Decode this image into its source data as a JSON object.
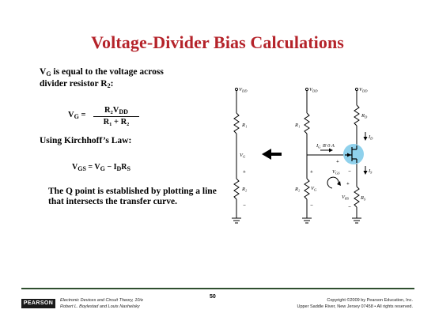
{
  "slide": {
    "title": "Voltage-Divider Bias Calculations",
    "intro_line1": "is equal to the voltage across",
    "intro_line2": "divider resistor R",
    "intro_sub": "2",
    "kirchhoff": "Using Kirchhoff’s Law:",
    "qpoint": "The Q point is established by plotting a line that intersects the transfer curve."
  },
  "equations": {
    "vg_lhs": "V",
    "vg_lhs_sub": "G",
    "vg_eq": " =",
    "vg_num": "R₂V",
    "vg_num_sub": "DD",
    "vg_den": "R₁ + R₂",
    "vgs": "V",
    "vgs_sub": "GS",
    "vgs_rhs": " = V",
    "vgs_rhs_sub": "G",
    "vgs_rhs2": " − I",
    "vgs_rhs2_sub": "D",
    "vgs_rhs3": "R",
    "vgs_rhs3_sub": "S"
  },
  "circuit_labels": {
    "vdd": "V",
    "vdd_sub": "DD",
    "r1": "R₁",
    "r2": "R₂",
    "vg": "V",
    "vg_sub": "G",
    "rd": "R",
    "rd_sub": "D",
    "rs": "R",
    "rs_sub": "S",
    "id": "I",
    "id_sub": "D",
    "is": "I",
    "is_sub": "S",
    "ig": "I",
    "ig_sub": "G",
    "ig_val": " ≅ 0 A",
    "vgs": "V",
    "vgs_sub": "GS",
    "vrs": "V",
    "vrs_sub": "RS",
    "plus": "+",
    "minus": "−"
  },
  "footer": {
    "publisher": "PEARSON",
    "book_line1": "Electronic Devices and Circuit Theory, 10/e",
    "book_line2": "Robert L. Boylestad and Louis Nashelsky",
    "page": "50",
    "copyright_line1": "Copyright ©2009 by Pearson Education, Inc.",
    "copyright_line2": "Upper Saddle River, New Jersey 07458 • All rights reserved."
  },
  "colors": {
    "title": "#b5232a",
    "transistor_highlight": "#8fd1ec",
    "footer_rule": "#2f4f2f"
  }
}
